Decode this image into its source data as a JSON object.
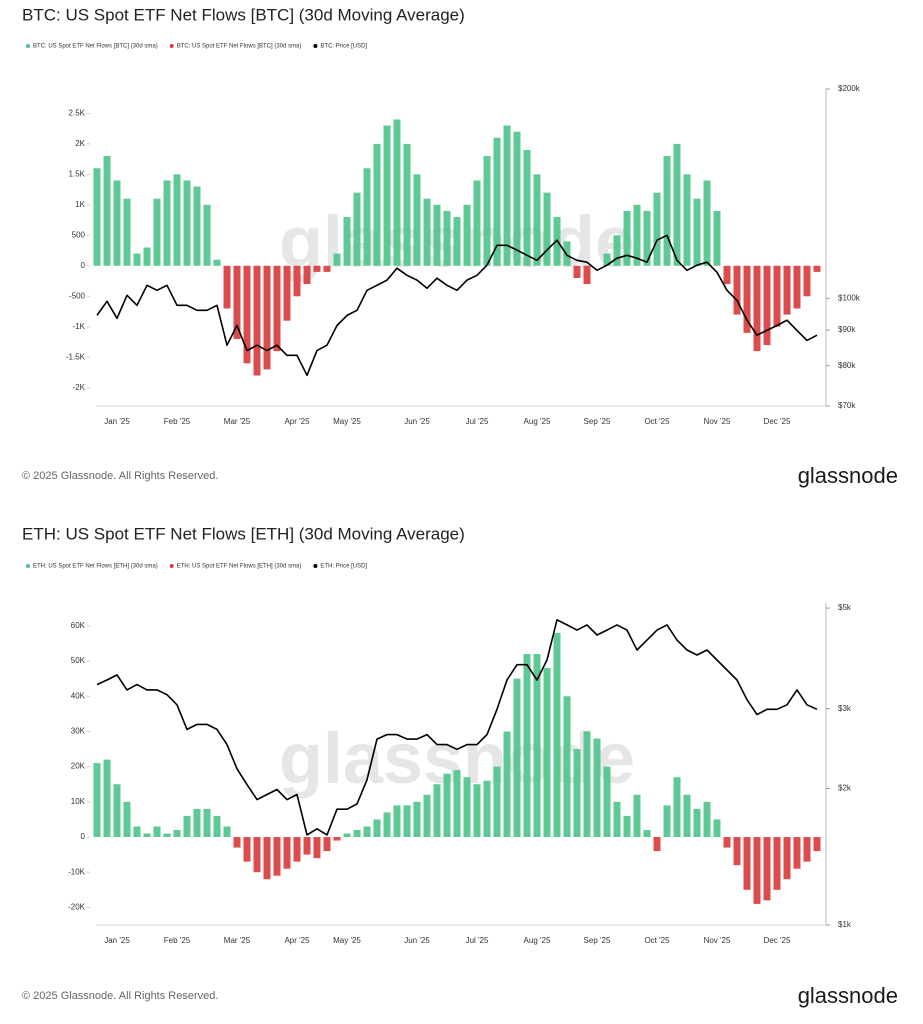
{
  "chart_data": [
    {
      "type": "bar",
      "title": "BTC: US Spot ETF Net Flows [BTC] (30d Moving Average)",
      "categories": [
        null,
        null,
        "Jan '25",
        null,
        null,
        null,
        null,
        null,
        "Feb '25",
        null,
        null,
        null,
        null,
        null,
        "Mar '25",
        null,
        null,
        null,
        null,
        null,
        "Apr '25",
        null,
        null,
        null,
        null,
        "May '25",
        null,
        null,
        null,
        null,
        null,
        null,
        "Jun '25",
        null,
        null,
        null,
        null,
        null,
        "Jul '25",
        null,
        null,
        null,
        null,
        null,
        "Aug '25",
        null,
        null,
        null,
        null,
        null,
        "Sep '25",
        null,
        null,
        null,
        null,
        null,
        "Oct '25",
        null,
        null,
        null,
        null,
        null,
        "Nov '25",
        null,
        null,
        null,
        null,
        null,
        "Dec '25",
        null,
        null,
        null,
        null
      ],
      "series": [
        {
          "name": "BTC: US Spot ETF Net Flows [BTC] (30d sma)",
          "color": "#4cc38a",
          "values": [
            1600,
            1800,
            1400,
            1100,
            200,
            300,
            1100,
            1400,
            1500,
            1400,
            1300,
            1000,
            100,
            null,
            null,
            null,
            null,
            null,
            null,
            null,
            null,
            null,
            null,
            null,
            200,
            800,
            1200,
            1600,
            2000,
            2300,
            2400,
            2000,
            1500,
            1100,
            1000,
            900,
            800,
            1000,
            1400,
            1800,
            2100,
            2300,
            2200,
            1900,
            1500,
            1200,
            800,
            400,
            null,
            null,
            0,
            200,
            500,
            900,
            1000,
            900,
            1200,
            1800,
            2000,
            1500,
            1100,
            1400,
            900,
            null,
            null,
            null,
            null,
            null,
            null,
            null,
            null,
            null,
            null
          ]
        },
        {
          "name": "BTC: US Spot ETF Net Flows [BTC] (30d sma)",
          "color": "#d9383a",
          "values": [
            null,
            null,
            null,
            null,
            null,
            null,
            null,
            null,
            null,
            null,
            null,
            null,
            null,
            -700,
            -1200,
            -1600,
            -1800,
            -1700,
            -1400,
            -900,
            -500,
            -300,
            -100,
            -100,
            null,
            null,
            null,
            null,
            null,
            null,
            null,
            null,
            null,
            null,
            null,
            null,
            null,
            null,
            null,
            null,
            null,
            null,
            null,
            null,
            null,
            null,
            null,
            null,
            -200,
            -300,
            null,
            null,
            null,
            null,
            null,
            null,
            null,
            null,
            null,
            null,
            null,
            null,
            null,
            -300,
            -800,
            -1100,
            -1400,
            -1300,
            -1000,
            -800,
            -700,
            -500,
            -100
          ]
        },
        {
          "name": "BTC: Price [USD]",
          "color": "#000000",
          "type": "line",
          "axis": "y2",
          "values": [
            94500,
            99000,
            93600,
            101000,
            97700,
            104400,
            102700,
            104400,
            97700,
            97700,
            96100,
            96100,
            97700,
            85600,
            91400,
            84100,
            85600,
            84100,
            85600,
            82800,
            82800,
            77500,
            84100,
            85600,
            91400,
            94500,
            96100,
            102700,
            104400,
            106200,
            110500,
            107900,
            106200,
            103400,
            106900,
            104400,
            102700,
            106200,
            107900,
            111600,
            119200,
            119200,
            117300,
            115300,
            113400,
            117300,
            121200,
            115300,
            113400,
            112700,
            109700,
            111600,
            114200,
            115300,
            114200,
            112700,
            121200,
            123200,
            113400,
            109700,
            111600,
            112700,
            109000,
            102700,
            99300,
            93000,
            88500,
            89900,
            91400,
            93000,
            89900,
            87000,
            88500
          ]
        }
      ],
      "ylim": [
        -2300,
        2900
      ],
      "yticks": [
        {
          "value": -2000,
          "label": "-2K"
        },
        {
          "value": -1500,
          "label": "-1.5K"
        },
        {
          "value": -1000,
          "label": "-1K"
        },
        -500,
        0,
        500,
        {
          "value": 1000,
          "label": "1K"
        },
        {
          "value": 1500,
          "label": "1.5K"
        },
        {
          "value": 2000,
          "label": "2K"
        },
        {
          "value": 2500,
          "label": "2.5K"
        }
      ],
      "y2lim": [
        70000,
        200000
      ],
      "y2log": true,
      "y2ticks": [
        {
          "value": 70000,
          "label": "$70k"
        },
        {
          "value": 80000,
          "label": "$80k"
        },
        {
          "value": 90000,
          "label": "$90k"
        },
        {
          "value": 100000,
          "label": "$100k"
        },
        {
          "value": 200000,
          "label": "$200k"
        }
      ],
      "watermark": "glassnode",
      "copyright": "© 2025 Glassnode. All Rights Reserved.",
      "brand": "glassnode"
    },
    {
      "type": "bar",
      "title": "ETH: US Spot ETF Net Flows [ETH] (30d Moving Average)",
      "categories": [
        null,
        null,
        "Jan '25",
        null,
        null,
        null,
        null,
        null,
        "Feb '25",
        null,
        null,
        null,
        null,
        null,
        "Mar '25",
        null,
        null,
        null,
        null,
        null,
        "Apr '25",
        null,
        null,
        null,
        null,
        "May '25",
        null,
        null,
        null,
        null,
        null,
        null,
        "Jun '25",
        null,
        null,
        null,
        null,
        null,
        "Jul '25",
        null,
        null,
        null,
        null,
        null,
        "Aug '25",
        null,
        null,
        null,
        null,
        null,
        "Sep '25",
        null,
        null,
        null,
        null,
        null,
        "Oct '25",
        null,
        null,
        null,
        null,
        null,
        "Nov '25",
        null,
        null,
        null,
        null,
        null,
        "Dec '25",
        null,
        null,
        null,
        null
      ],
      "series": [
        {
          "name": "ETH: US Spot ETF Net Flows [ETH] (30d sma)",
          "color": "#4cc38a",
          "values": [
            21000,
            22000,
            15000,
            10000,
            3000,
            1000,
            3000,
            1000,
            2000,
            6000,
            8000,
            8000,
            6000,
            3000,
            null,
            null,
            null,
            null,
            null,
            null,
            null,
            null,
            null,
            null,
            null,
            1000,
            2000,
            3000,
            5000,
            7000,
            9000,
            9000,
            10000,
            12000,
            15000,
            18000,
            19000,
            17000,
            15000,
            16000,
            20000,
            30000,
            45000,
            52000,
            52000,
            48000,
            58000,
            40000,
            25000,
            30000,
            28000,
            20000,
            10000,
            6000,
            12000,
            2000,
            null,
            9000,
            17000,
            12000,
            8000,
            10000,
            5000,
            null,
            null,
            null,
            null,
            null,
            null,
            null,
            null,
            null,
            null
          ]
        },
        {
          "name": "ETH: US Spot ETF Net Flows [ETH] (30d sma)",
          "color": "#d9383a",
          "values": [
            null,
            null,
            null,
            null,
            null,
            null,
            null,
            null,
            null,
            null,
            null,
            null,
            null,
            null,
            -3000,
            -7000,
            -10000,
            -12000,
            -11000,
            -9000,
            -7000,
            -5000,
            -6000,
            -4000,
            -1000,
            null,
            null,
            null,
            null,
            null,
            null,
            null,
            null,
            null,
            null,
            null,
            null,
            null,
            null,
            null,
            null,
            null,
            null,
            null,
            null,
            null,
            null,
            null,
            null,
            null,
            null,
            null,
            null,
            null,
            null,
            null,
            -4000,
            null,
            null,
            null,
            null,
            null,
            null,
            -3000,
            -8000,
            -15000,
            -19000,
            -18000,
            -15000,
            -12000,
            -9000,
            -7000,
            -4000
          ]
        },
        {
          "name": "ETH: Price [USD]",
          "color": "#000000",
          "type": "line",
          "axis": "y2",
          "values": [
            3390,
            3470,
            3560,
            3300,
            3390,
            3300,
            3300,
            3220,
            3060,
            2700,
            2770,
            2770,
            2700,
            2500,
            2210,
            2040,
            1890,
            1940,
            1990,
            1890,
            1940,
            1580,
            1630,
            1580,
            1800,
            1800,
            1850,
            2090,
            2570,
            2630,
            2630,
            2570,
            2570,
            2630,
            2500,
            2500,
            2440,
            2500,
            2500,
            2630,
            2990,
            3470,
            3750,
            3750,
            3470,
            3840,
            4710,
            4590,
            4470,
            4590,
            4360,
            4470,
            4590,
            4470,
            4040,
            4250,
            4470,
            4590,
            4250,
            4040,
            3940,
            4040,
            3840,
            3650,
            3470,
            3140,
            2910,
            2990,
            2990,
            3060,
            3300,
            3060,
            2990
          ]
        }
      ],
      "ylim": [
        -25000,
        66500
      ],
      "yticks": [
        {
          "value": -20000,
          "label": "-20K"
        },
        {
          "value": -10000,
          "label": "-10K"
        },
        0,
        {
          "value": 10000,
          "label": "10K"
        },
        {
          "value": 20000,
          "label": "20K"
        },
        {
          "value": 30000,
          "label": "30K"
        },
        {
          "value": 40000,
          "label": "40K"
        },
        {
          "value": 50000,
          "label": "50K"
        },
        {
          "value": 60000,
          "label": "60K"
        }
      ],
      "y2lim": [
        1000,
        5130
      ],
      "y2log": true,
      "y2ticks": [
        {
          "value": 1000,
          "label": "$1k"
        },
        {
          "value": 2000,
          "label": "$2k"
        },
        {
          "value": 3000,
          "label": "$3k"
        },
        {
          "value": 5000,
          "label": "$5k"
        }
      ],
      "watermark": "glassnode",
      "copyright": "© 2025 Glassnode. All Rights Reserved.",
      "brand": "glassnode"
    }
  ]
}
